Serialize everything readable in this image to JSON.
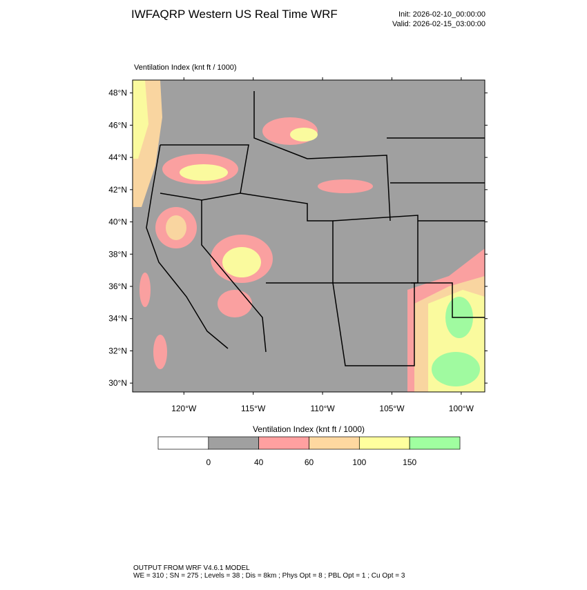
{
  "header": {
    "title": "IWFAQRP Western US Real Time WRF",
    "init": "Init: 2026-02-10_00:00:00",
    "valid": "Valid: 2026-02-15_03:00:00"
  },
  "map": {
    "label": "Ventilation Index   (knt ft / 1000)",
    "latlim": [
      29.45,
      48.8
    ],
    "lonlim": [
      -123.7,
      -98.3
    ],
    "lat_ticks": [
      {
        "value": 48,
        "label": "48°N"
      },
      {
        "value": 46,
        "label": "46°N"
      },
      {
        "value": 44,
        "label": "44°N"
      },
      {
        "value": 42,
        "label": "42°N"
      },
      {
        "value": 40,
        "label": "40°N"
      },
      {
        "value": 38,
        "label": "38°N"
      },
      {
        "value": 36,
        "label": "36°N"
      },
      {
        "value": 34,
        "label": "34°N"
      },
      {
        "value": 32,
        "label": "32°N"
      },
      {
        "value": 30,
        "label": "30°N"
      }
    ],
    "lon_ticks": [
      {
        "value": -120,
        "label": "120°W"
      },
      {
        "value": -115,
        "label": "115°W"
      },
      {
        "value": -110,
        "label": "110°W"
      },
      {
        "value": -105,
        "label": "105°W"
      },
      {
        "value": -100,
        "label": "100°W"
      }
    ]
  },
  "colorbar": {
    "title": "Ventilation Index   (knt ft / 1000)",
    "levels": [
      0,
      40,
      60,
      100,
      150
    ],
    "colors": [
      "#ffffff",
      "#a0a0a0",
      "#ffa0a0",
      "#fed8a0",
      "#ffff9e",
      "#a0ffa0"
    ]
  },
  "footer": {
    "line1": "OUTPUT FROM WRF V4.6.1 MODEL",
    "line2": "WE = 310 ; SN = 275 ; Levels = 38 ; Dis = 8km ; Phys Opt = 8 ; PBL Opt = 1 ; Cu Opt = 3"
  }
}
